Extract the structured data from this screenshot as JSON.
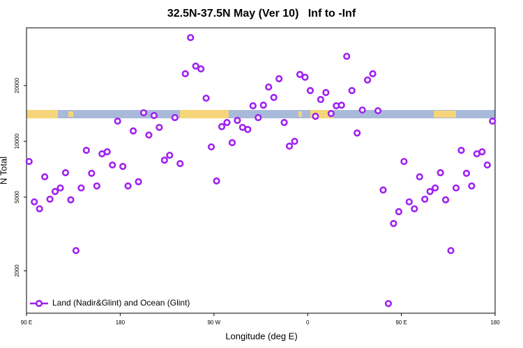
{
  "chart_data": {
    "type": "scatter",
    "title": "32.5N-37.5N May (Ver 10)   Inf to -Inf",
    "x_label": "Longitude (deg E)",
    "y_label": "N Total",
    "x": [
      92.5,
      97.5,
      102.5,
      107.5,
      112.5,
      117.5,
      122.5,
      127.5,
      132.5,
      137.5,
      142.5,
      147.5,
      152.5,
      157.5,
      162.5,
      167.5,
      172.5,
      177.5,
      182.5,
      187.5,
      192.5,
      197.5,
      202.5,
      207.5,
      212.5,
      217.5,
      222.5,
      227.5,
      232.5,
      237.5,
      242.5,
      247.5,
      252.5,
      257.5,
      262.5,
      267.5,
      272.5,
      277.5,
      282.5,
      287.5,
      292.5,
      297.5,
      302.5,
      307.5,
      312.5,
      317.5,
      322.5,
      327.5,
      332.5,
      337.5,
      342.5,
      347.5,
      352.5,
      357.5,
      362.5,
      367.5,
      372.5,
      377.5,
      382.5,
      387.5,
      392.5,
      397.5,
      402.5,
      407.5,
      412.5,
      417.5,
      422.5,
      427.5,
      432.5,
      437.5,
      442.5,
      447.5,
      452.5,
      457.5,
      462.5,
      467.5,
      472.5,
      477.5,
      482.5,
      487.5,
      492.5,
      497.5,
      502.5,
      507.5,
      512.5,
      517.5,
      522.5,
      527.5,
      532.5,
      537.5
    ],
    "series": [
      {
        "name": "Land (Nadir&Glint) and Ocean (Glint)",
        "color": "#a020f0",
        "values": [
          7780,
          4710,
          4320,
          6430,
          4870,
          5360,
          5600,
          6770,
          4830,
          2570,
          5600,
          8940,
          6720,
          5740,
          8560,
          8780,
          7450,
          12850,
          7320,
          5740,
          11380,
          6050,
          14260,
          10810,
          13780,
          11890,
          7910,
          8410,
          13430,
          7580,
          23160,
          36310,
          25470,
          24600,
          17100,
          9330,
          6110,
          12000,
          12640,
          9830,
          12970,
          11890,
          11590,
          15550,
          13430,
          15670,
          19640,
          17260,
          21780,
          12640,
          9420,
          10000,
          22960,
          22180,
          18800,
          13650,
          16820,
          18330,
          14130,
          15550,
          15670,
          28770,
          18800,
          11090,
          14760,
          21430,
          23160,
          14630,
          5460,
          1330,
          3600,
          4170,
          7780,
          4710,
          4320,
          6430,
          4870,
          5360,
          5600,
          6770,
          4830,
          2570,
          5600,
          8940,
          6720,
          5740,
          8560,
          8780,
          7450,
          12850
        ]
      }
    ],
    "xlim": [
      90,
      540
    ],
    "xticks": [
      {
        "value": 90,
        "label": "90 E"
      },
      {
        "value": 180,
        "label": "180"
      },
      {
        "value": 270,
        "label": "90 W"
      },
      {
        "value": 360,
        "label": "0"
      },
      {
        "value": 450,
        "label": "90 E"
      },
      {
        "value": 540,
        "label": "180"
      }
    ],
    "ylim": [
      1180,
      41000
    ],
    "yticks": [
      2000,
      5000,
      10000,
      20000
    ],
    "y_log": true,
    "legend": "lower left"
  }
}
